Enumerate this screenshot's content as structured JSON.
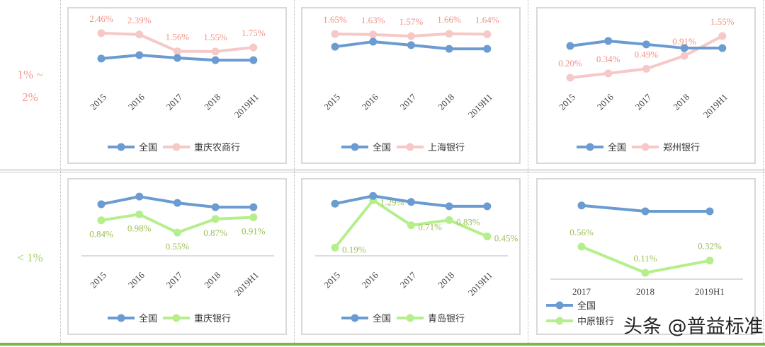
{
  "rows": [
    {
      "label_line1": "1% ~",
      "label_line2": "2%",
      "color": "#f29a90"
    },
    {
      "label_line1": "< 1%",
      "label_line2": "",
      "color": "#9bd36a"
    }
  ],
  "colors": {
    "national": "#6a9bd1",
    "pink_line": "#f6c8c8",
    "pink_text": "#f09186",
    "green_line": "#b5ef8c",
    "green_text": "#9cc055",
    "bottom_bar": "#7ab648"
  },
  "watermark": "头条 @普益标准",
  "chart_data": [
    {
      "type": "line",
      "title": "重庆农商行",
      "categories": [
        "2015",
        "2016",
        "2017",
        "2018",
        "2019H1"
      ],
      "ylim": [
        0.25,
        3.4
      ],
      "label_pos": "above",
      "tone": "pink",
      "series": [
        {
          "name": "全国",
          "values": [
            1.2,
            1.37,
            1.23,
            1.12,
            1.12
          ],
          "labeled": false
        },
        {
          "name": "重庆农商行",
          "values": [
            2.46,
            2.39,
            1.56,
            1.55,
            1.75
          ],
          "labels": [
            "2.46%",
            "2.39%",
            "1.56%",
            "1.55%",
            "1.75%"
          ],
          "labeled": true
        }
      ]
    },
    {
      "type": "line",
      "title": "上海银行",
      "categories": [
        "2015",
        "2016",
        "2017",
        "2018",
        "2019H1"
      ],
      "ylim": [
        0,
        2.4
      ],
      "label_pos": "above",
      "tone": "pink",
      "series": [
        {
          "name": "全国",
          "values": [
            1.17,
            1.36,
            1.23,
            1.09,
            1.09
          ],
          "labeled": false
        },
        {
          "name": "上海银行",
          "values": [
            1.65,
            1.63,
            1.57,
            1.66,
            1.64
          ],
          "labels": [
            "1.65%",
            "1.63%",
            "1.57%",
            "1.66%",
            "1.64%"
          ],
          "labeled": true
        }
      ]
    },
    {
      "type": "line",
      "title": "郑州银行",
      "categories": [
        "2015",
        "2016",
        "2017",
        "2018",
        "2019H1"
      ],
      "ylim": [
        0.2,
        2.26
      ],
      "label_pos": "above",
      "tone": "pink",
      "series": [
        {
          "name": "全国",
          "values": [
            1.23,
            1.39,
            1.28,
            1.16,
            1.16
          ],
          "labeled": false
        },
        {
          "name": "郑州银行",
          "values": [
            0.2,
            0.34,
            0.49,
            0.91,
            1.55
          ],
          "labels": [
            "0.20%",
            "0.34%",
            "0.49%",
            "0.91%",
            "1.55%"
          ],
          "labeled": true
        }
      ]
    },
    {
      "type": "line",
      "title": "重庆银行",
      "categories": [
        "2015",
        "2016",
        "2017",
        "2018",
        "2019H1"
      ],
      "ylim": [
        0,
        1.67
      ],
      "label_pos": "below",
      "tone": "green",
      "series": [
        {
          "name": "全国",
          "values": [
            1.22,
            1.4,
            1.25,
            1.15,
            1.15
          ],
          "labeled": false
        },
        {
          "name": "重庆银行",
          "values": [
            0.84,
            0.98,
            0.55,
            0.87,
            0.91
          ],
          "labels": [
            "0.84%",
            "0.98%",
            "0.55%",
            "0.87%",
            "0.91%"
          ],
          "labeled": true
        }
      ]
    },
    {
      "type": "line",
      "title": "青岛银行",
      "categories": [
        "2015",
        "2016",
        "2017",
        "2018",
        "2019H1"
      ],
      "ylim": [
        0,
        1.64
      ],
      "label_pos": "right",
      "tone": "green",
      "series": [
        {
          "name": "全国",
          "values": [
            1.21,
            1.39,
            1.25,
            1.15,
            1.15
          ],
          "labeled": false
        },
        {
          "name": "青岛银行",
          "values": [
            0.19,
            1.29,
            0.71,
            0.83,
            0.45
          ],
          "labels": [
            "0.19%",
            "1.29%",
            "0.71%",
            "0.83%",
            "0.45%"
          ],
          "labeled": true
        }
      ]
    },
    {
      "type": "line",
      "title": "中原银行",
      "categories": [
        "2017",
        "2018",
        "2019H1"
      ],
      "ylim": [
        0,
        1.62
      ],
      "label_pos": "above",
      "tone": "green",
      "series": [
        {
          "name": "全国",
          "values": [
            1.27,
            1.17,
            1.17
          ],
          "labeled": false
        },
        {
          "name": "中原银行",
          "values": [
            0.56,
            0.11,
            0.32
          ],
          "labels": [
            "0.56%",
            "0.11%",
            "0.32%"
          ],
          "labeled": true
        }
      ]
    }
  ]
}
